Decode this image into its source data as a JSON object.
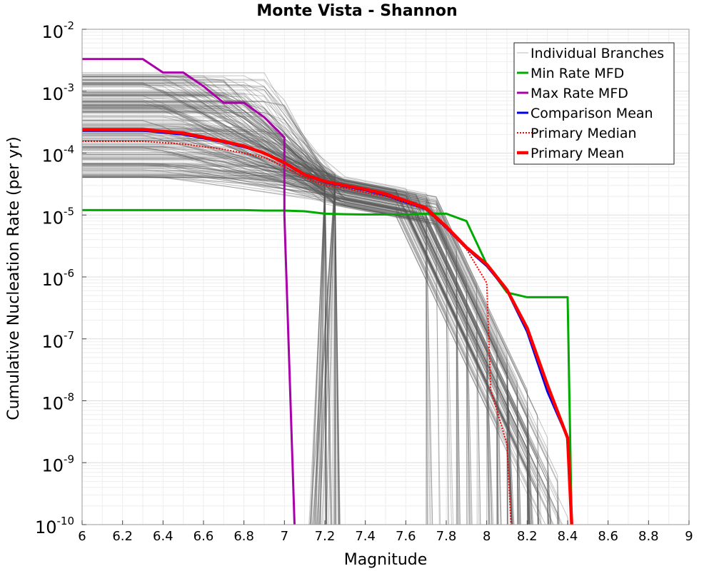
{
  "chart_data": {
    "type": "line",
    "title": "Monte Vista - Shannon",
    "xlabel": "Magnitude",
    "ylabel": "Cumulative Nucleation Rate (per yr)",
    "xlim": [
      6,
      9
    ],
    "ylim": [
      1e-10,
      0.01
    ],
    "yscale": "log",
    "grid": true,
    "legend_position": "top-right",
    "x_ticks": [
      "6",
      "6.2",
      "6.4",
      "6.6",
      "6.8",
      "7",
      "7.2",
      "7.4",
      "7.6",
      "7.8",
      "8",
      "8.2",
      "8.4",
      "8.6",
      "8.8",
      "9"
    ],
    "y_ticks": [
      {
        "value": 1e-10,
        "base": "10",
        "exp": "-10"
      },
      {
        "value": 1e-09,
        "base": "10",
        "exp": "-9"
      },
      {
        "value": 1e-08,
        "base": "10",
        "exp": "-8"
      },
      {
        "value": 1e-07,
        "base": "10",
        "exp": "-7"
      },
      {
        "value": 1e-06,
        "base": "10",
        "exp": "-6"
      },
      {
        "value": 1e-05,
        "base": "10",
        "exp": "-5"
      },
      {
        "value": 0.0001,
        "base": "10",
        "exp": "-4"
      },
      {
        "value": 0.001,
        "base": "10",
        "exp": "-3"
      },
      {
        "value": 0.01,
        "base": "10",
        "exp": "-2"
      }
    ],
    "series": [
      {
        "name": "Min Rate MFD",
        "color": "#00aa00",
        "style": "solid",
        "x": [
          6.0,
          6.1,
          6.2,
          6.3,
          6.4,
          6.5,
          6.6,
          6.7,
          6.8,
          6.9,
          7.0,
          7.1,
          7.2,
          7.3,
          7.4,
          7.5,
          7.6,
          7.7,
          7.8,
          7.9,
          8.0,
          8.1,
          8.2,
          8.3,
          8.4,
          8.42
        ],
        "y": [
          1.2e-05,
          1.2e-05,
          1.2e-05,
          1.2e-05,
          1.2e-05,
          1.2e-05,
          1.2e-05,
          1.2e-05,
          1.2e-05,
          1.18e-05,
          1.18e-05,
          1.15e-05,
          1.05e-05,
          1.03e-05,
          1.02e-05,
          1.02e-05,
          1.02e-05,
          1.05e-05,
          1.05e-05,
          8e-06,
          1.6e-06,
          5.6e-07,
          4.7e-07,
          4.7e-07,
          4.7e-07,
          1e-10
        ]
      },
      {
        "name": "Max Rate MFD",
        "color": "#aa00aa",
        "style": "solid",
        "x": [
          6.0,
          6.1,
          6.2,
          6.3,
          6.4,
          6.5,
          6.6,
          6.7,
          6.8,
          6.9,
          7.0,
          7.0,
          7.05
        ],
        "y": [
          0.0033,
          0.0033,
          0.0033,
          0.0033,
          0.002,
          0.002,
          0.0012,
          0.00065,
          0.00065,
          0.00038,
          0.00018,
          1e-05,
          1e-10
        ]
      },
      {
        "name": "Comparison Mean",
        "color": "#0000ee",
        "style": "solid",
        "x": [
          6.0,
          6.3,
          6.5,
          6.7,
          6.8,
          6.9,
          7.0,
          7.1,
          7.2,
          7.3,
          7.4,
          7.5,
          7.6,
          7.7,
          7.8,
          7.9,
          8.0,
          8.1,
          8.2,
          8.3,
          8.4
        ],
        "y": [
          0.00023,
          0.00023,
          0.0002,
          0.00015,
          0.000125,
          0.0001,
          6.8e-05,
          4.4e-05,
          3.4e-05,
          2.9e-05,
          2.5e-05,
          2.1e-05,
          1.6e-05,
          1.25e-05,
          6.2e-06,
          2.9e-06,
          1.5e-06,
          6e-07,
          1.3e-07,
          1.4e-08,
          2.5e-09
        ]
      },
      {
        "name": "Primary Median",
        "color": "#ff0000",
        "style": "dotted",
        "x": [
          6.0,
          6.3,
          6.5,
          6.7,
          6.8,
          6.9,
          7.0,
          7.1,
          7.2,
          7.3,
          7.4,
          7.5,
          7.6,
          7.7,
          7.8,
          7.9,
          8.0,
          8.02,
          8.1,
          8.12
        ],
        "y": [
          0.000155,
          0.000155,
          0.00014,
          0.000115,
          0.0001,
          8.5e-05,
          6e-05,
          4e-05,
          3e-05,
          2.7e-05,
          2.3e-05,
          2e-05,
          1.6e-05,
          1.2e-05,
          6e-06,
          2.8e-06,
          8e-07,
          1.5e-08,
          2e-09,
          1e-10
        ]
      },
      {
        "name": "Primary Mean",
        "color": "#ff0000",
        "style": "solid",
        "x": [
          6.0,
          6.3,
          6.5,
          6.7,
          6.8,
          6.9,
          7.0,
          7.1,
          7.2,
          7.3,
          7.4,
          7.5,
          7.6,
          7.7,
          7.8,
          7.9,
          8.0,
          8.1,
          8.2,
          8.3,
          8.4,
          8.42
        ],
        "y": [
          0.00024,
          0.00024,
          0.00021,
          0.000155,
          0.00013,
          0.0001,
          7e-05,
          4.5e-05,
          3.5e-05,
          3e-05,
          2.6e-05,
          2.2e-05,
          1.7e-05,
          1.3e-05,
          6.5e-06,
          3e-06,
          1.6e-06,
          6.2e-07,
          1.5e-07,
          1.8e-08,
          2.5e-09,
          1e-10
        ]
      }
    ],
    "branches": {
      "name": "Individual Branches",
      "color": "#555555",
      "count": 220,
      "plateau_range": [
        4e-05,
        0.002
      ],
      "mid_anchor_range": [
        1.5e-05,
        4.5e-05
      ]
    },
    "legend": [
      {
        "label": "Individual Branches",
        "color": "#bbbbbb",
        "style": "thin"
      },
      {
        "label": "Min Rate MFD",
        "color": "#00aa00",
        "style": "solid"
      },
      {
        "label": "Max Rate MFD",
        "color": "#aa00aa",
        "style": "solid"
      },
      {
        "label": "Comparison Mean",
        "color": "#0000ee",
        "style": "solid"
      },
      {
        "label": " Primary Median",
        "color": "#ff0000",
        "style": "dotted"
      },
      {
        "label": "Primary Mean",
        "color": "#ff0000",
        "style": "thick"
      }
    ]
  }
}
